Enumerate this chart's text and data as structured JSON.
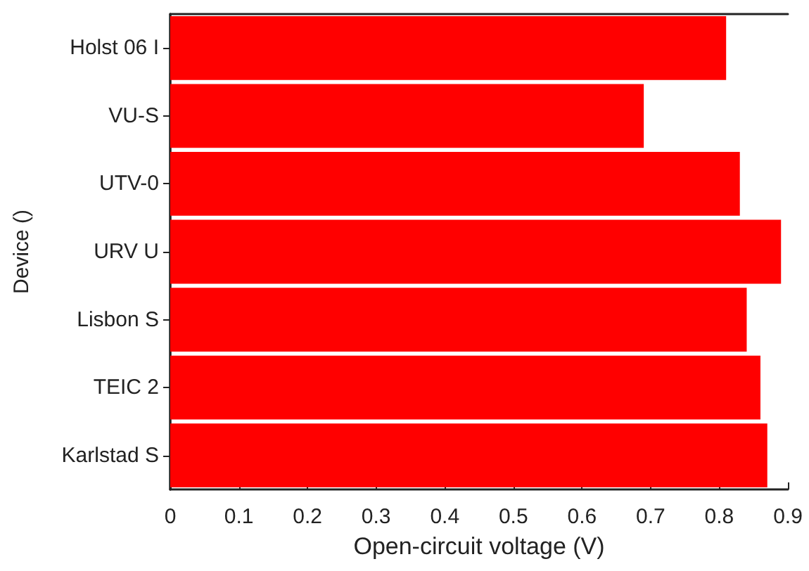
{
  "chart_data": {
    "type": "bar",
    "orientation": "horizontal",
    "xlabel": "Open-circuit voltage (V)",
    "ylabel": "Device ()",
    "categories": [
      "Holst 06 I",
      "VU-S",
      "UTV-0",
      "URV U",
      "Lisbon S",
      "TEIC 2",
      "Karlstad S"
    ],
    "values": [
      0.81,
      0.69,
      0.83,
      0.89,
      0.84,
      0.86,
      0.87
    ],
    "color": "#ff0000",
    "xlim": [
      0,
      0.9
    ],
    "xticks": [
      0,
      0.1,
      0.2,
      0.3,
      0.4,
      0.5,
      0.6,
      0.7,
      0.8,
      0.9
    ],
    "grid": false
  }
}
